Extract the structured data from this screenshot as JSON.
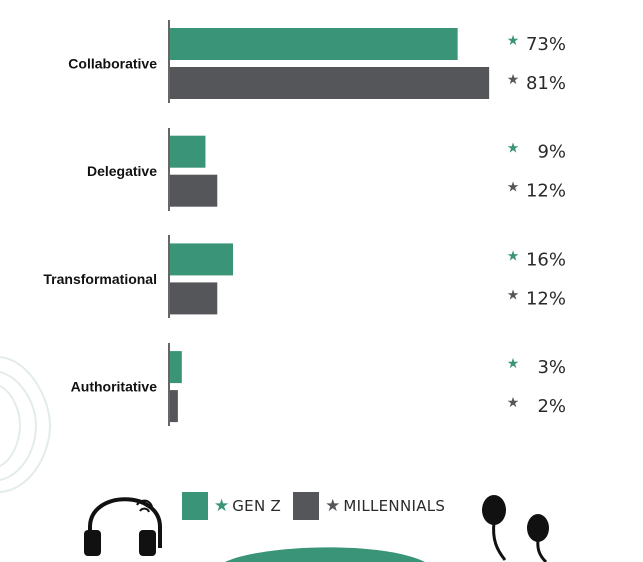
{
  "chart_data": {
    "type": "bar",
    "orientation": "horizontal",
    "categories": [
      "Collaborative",
      "Delegative",
      "Transformational",
      "Authoritative"
    ],
    "series": [
      {
        "name": "GEN Z",
        "values": [
          73,
          9,
          16,
          3
        ],
        "labels": [
          "73%",
          "9%",
          "16%",
          "3%"
        ],
        "color": "#3a9478"
      },
      {
        "name": "MILLENNIALS",
        "values": [
          81,
          12,
          12,
          2
        ],
        "labels": [
          "81%",
          "12%",
          "12%",
          "2%"
        ],
        "color": "#55565a"
      }
    ],
    "xlim": [
      0,
      100
    ],
    "value_suffix": "%",
    "legend_position": "bottom",
    "grid": false,
    "star_glyph": "★"
  }
}
